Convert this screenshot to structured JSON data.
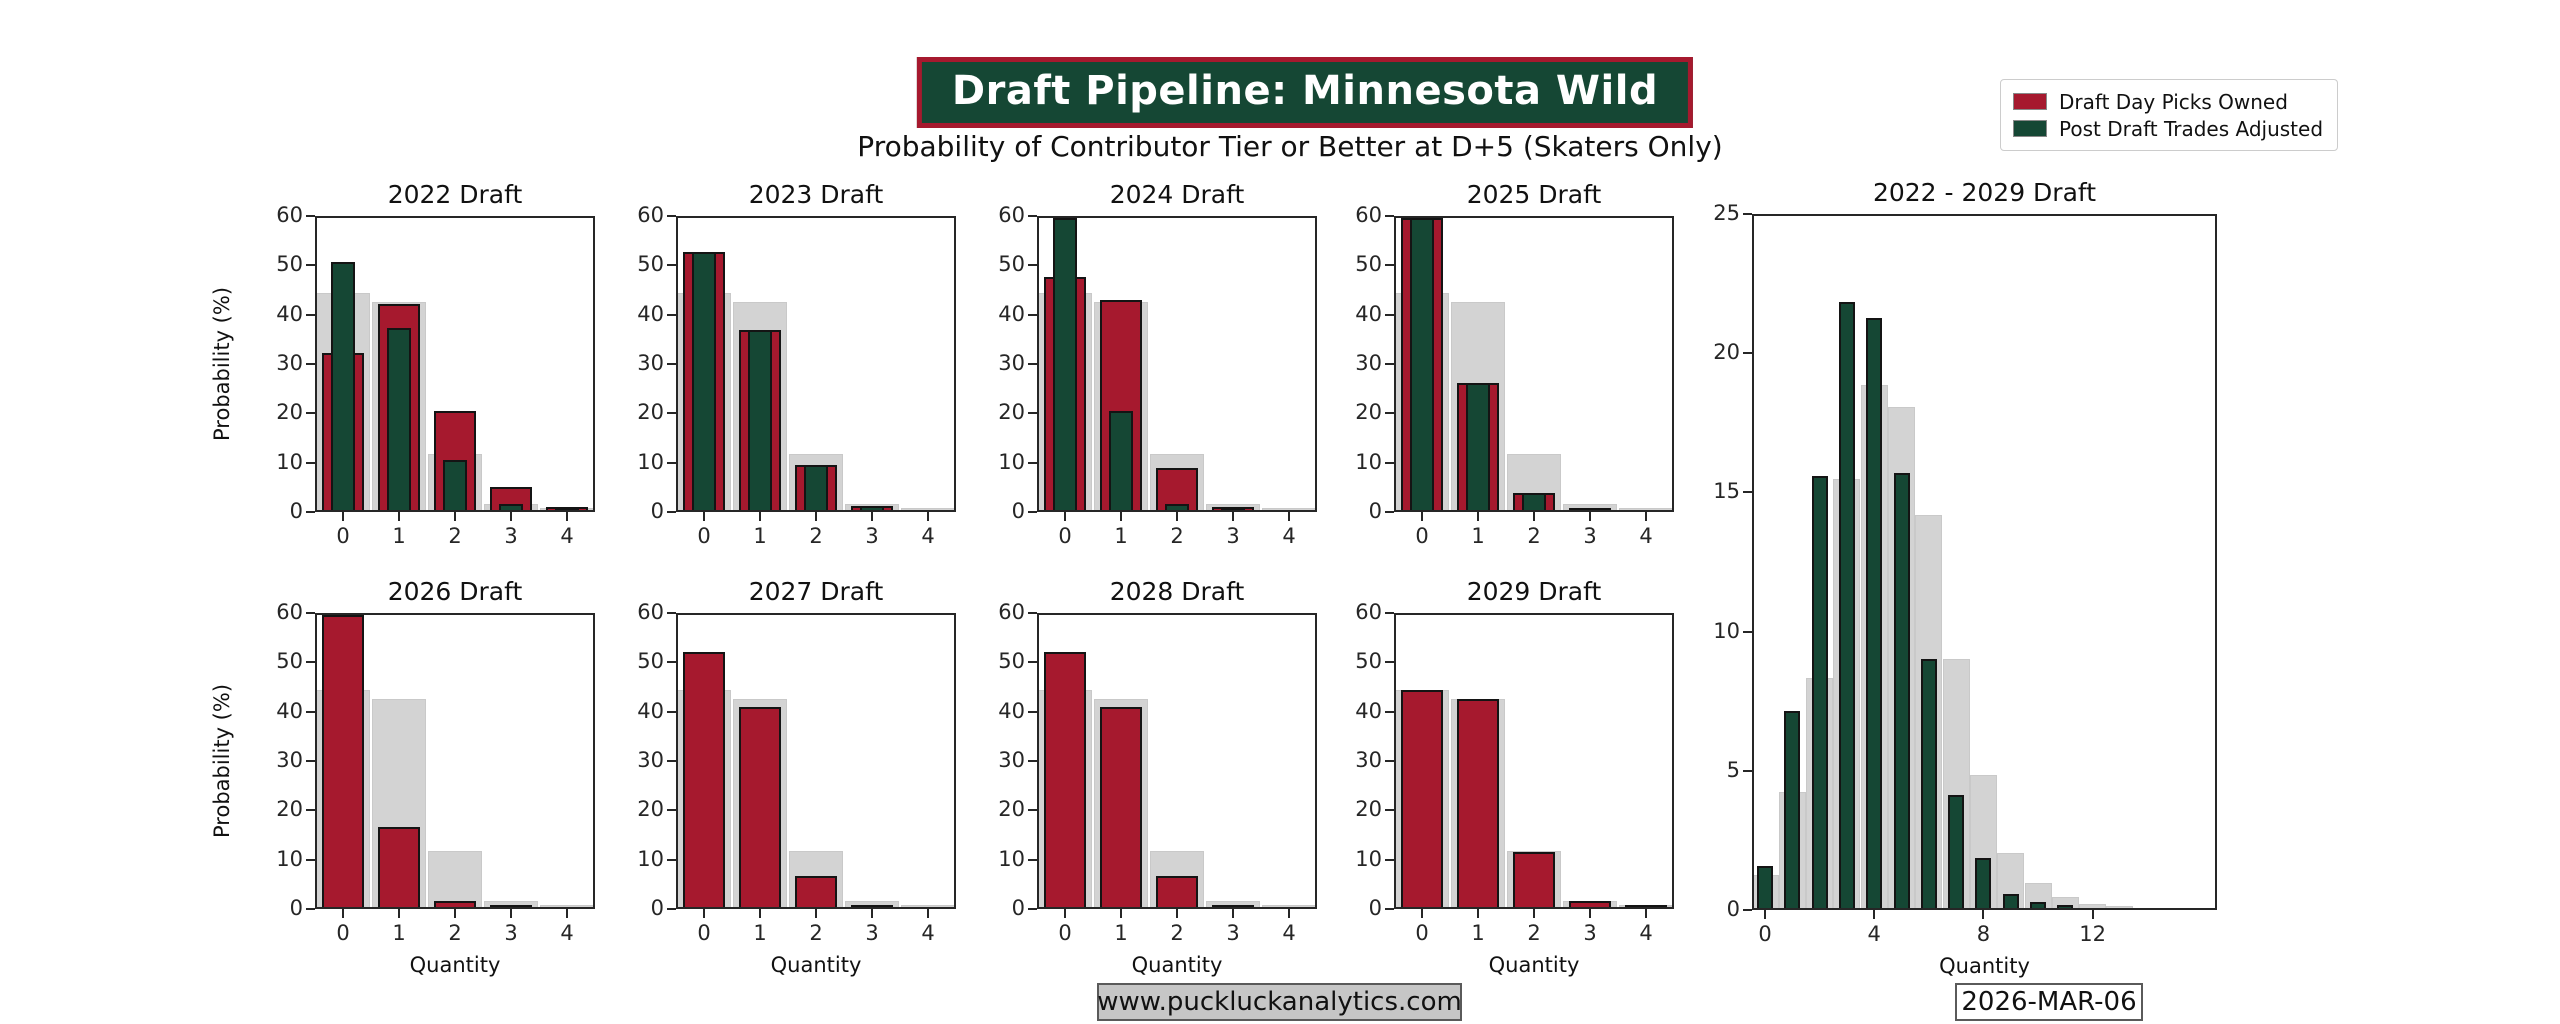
{
  "header": {
    "title": "Draft Pipeline: Minnesota Wild",
    "subtitle": "Probability of Contributor Tier or Better at D+5 (Skaters Only)"
  },
  "legend": {
    "items": [
      {
        "label": "Draft Day Picks Owned",
        "color": "#a6192e"
      },
      {
        "label": "Post Draft Trades Adjusted",
        "color": "#154734"
      }
    ]
  },
  "footer": {
    "website": "www.puckluckanalytics.com",
    "date": "2026-MAR-06"
  },
  "colors": {
    "brand_red": "#a6192e",
    "brand_green": "#154734",
    "baseline_gray": "#d3d3d3",
    "banner_bg": "#154734",
    "banner_border": "#a6192e",
    "axis_text": "#262626"
  },
  "chart_data": [
    {
      "type": "bar",
      "title": "2022 Draft",
      "categories": [
        0,
        1,
        2,
        3,
        4
      ],
      "ylim": [
        0,
        60
      ],
      "yticks": [
        0,
        10,
        20,
        30,
        40,
        50,
        60
      ],
      "xticks": [
        0,
        1,
        2,
        3,
        4
      ],
      "xlabel": "",
      "ylabel": "Probability (%)",
      "series": [
        {
          "name": "Baseline (unlabeled)",
          "color": "#d3d3d3",
          "values": [
            44.5,
            42.7,
            11.5,
            1.3,
            0.05
          ]
        },
        {
          "name": "Draft Day Picks Owned",
          "color": "#a6192e",
          "values": [
            32.3,
            42.3,
            20.3,
            4.7,
            0.6
          ]
        },
        {
          "name": "Post Draft Trades Adjusted",
          "color": "#154734",
          "values": [
            51.0,
            37.5,
            10.3,
            1.2,
            0.2
          ]
        }
      ]
    },
    {
      "type": "bar",
      "title": "2023 Draft",
      "categories": [
        0,
        1,
        2,
        3,
        4
      ],
      "ylim": [
        0,
        60
      ],
      "yticks": [
        0,
        10,
        20,
        30,
        40,
        50,
        60
      ],
      "xticks": [
        0,
        1,
        2,
        3,
        4
      ],
      "xlabel": "",
      "ylabel": "",
      "series": [
        {
          "name": "Baseline (unlabeled)",
          "color": "#d3d3d3",
          "values": [
            44.5,
            42.7,
            11.5,
            1.3,
            0.05
          ]
        },
        {
          "name": "Draft Day Picks Owned",
          "color": "#a6192e",
          "values": [
            53.0,
            37.0,
            9.3,
            0.9,
            0
          ]
        },
        {
          "name": "Post Draft Trades Adjusted",
          "color": "#154734",
          "values": [
            53.0,
            37.0,
            9.3,
            0.9,
            0
          ]
        }
      ]
    },
    {
      "type": "bar",
      "title": "2024 Draft",
      "categories": [
        0,
        1,
        2,
        3,
        4
      ],
      "ylim": [
        0,
        60
      ],
      "yticks": [
        0,
        10,
        20,
        30,
        40,
        50,
        60
      ],
      "xticks": [
        0,
        1,
        2,
        3,
        4
      ],
      "xlabel": "",
      "ylabel": "",
      "series": [
        {
          "name": "Baseline (unlabeled)",
          "color": "#d3d3d3",
          "values": [
            44.5,
            42.7,
            11.5,
            1.3,
            0.05
          ]
        },
        {
          "name": "Draft Day Picks Owned",
          "color": "#a6192e",
          "values": [
            47.8,
            43.2,
            8.6,
            0.6,
            0
          ]
        },
        {
          "name": "Post Draft Trades Adjusted",
          "color": "#154734",
          "values": [
            62.0,
            20.3,
            1.3,
            0.1,
            0
          ]
        }
      ]
    },
    {
      "type": "bar",
      "title": "2025 Draft",
      "categories": [
        0,
        1,
        2,
        3,
        4
      ],
      "ylim": [
        0,
        60
      ],
      "yticks": [
        0,
        10,
        20,
        30,
        40,
        50,
        60
      ],
      "xticks": [
        0,
        1,
        2,
        3,
        4
      ],
      "xlabel": "",
      "ylabel": "",
      "series": [
        {
          "name": "Baseline (unlabeled)",
          "color": "#d3d3d3",
          "values": [
            44.5,
            42.7,
            11.5,
            1.3,
            0.05
          ]
        },
        {
          "name": "Draft Day Picks Owned",
          "color": "#a6192e",
          "values": [
            65.0,
            26.0,
            3.4,
            0.3,
            0
          ]
        },
        {
          "name": "Post Draft Trades Adjusted",
          "color": "#154734",
          "values": [
            65.0,
            26.0,
            3.4,
            0.3,
            0
          ]
        }
      ]
    },
    {
      "type": "bar",
      "title": "2026 Draft",
      "categories": [
        0,
        1,
        2,
        3,
        4
      ],
      "ylim": [
        0,
        60
      ],
      "yticks": [
        0,
        10,
        20,
        30,
        40,
        50,
        60
      ],
      "xticks": [
        0,
        1,
        2,
        3,
        4
      ],
      "xlabel": "Quantity",
      "ylabel": "Probability (%)",
      "series": [
        {
          "name": "Baseline (unlabeled)",
          "color": "#d3d3d3",
          "values": [
            44.5,
            42.7,
            11.5,
            1.3,
            0.05
          ]
        },
        {
          "name": "Draft Day Picks Owned",
          "color": "#a6192e",
          "values": [
            63.0,
            16.5,
            1.3,
            0.1,
            0
          ]
        }
      ]
    },
    {
      "type": "bar",
      "title": "2027 Draft",
      "categories": [
        0,
        1,
        2,
        3,
        4
      ],
      "ylim": [
        0,
        60
      ],
      "yticks": [
        0,
        10,
        20,
        30,
        40,
        50,
        60
      ],
      "xticks": [
        0,
        1,
        2,
        3,
        4
      ],
      "xlabel": "Quantity",
      "ylabel": "",
      "series": [
        {
          "name": "Baseline (unlabeled)",
          "color": "#d3d3d3",
          "values": [
            44.5,
            42.7,
            11.5,
            1.3,
            0.05
          ]
        },
        {
          "name": "Draft Day Picks Owned",
          "color": "#a6192e",
          "values": [
            52.3,
            41.0,
            6.3,
            0.4,
            0
          ]
        }
      ]
    },
    {
      "type": "bar",
      "title": "2028 Draft",
      "categories": [
        0,
        1,
        2,
        3,
        4
      ],
      "ylim": [
        0,
        60
      ],
      "yticks": [
        0,
        10,
        20,
        30,
        40,
        50,
        60
      ],
      "xticks": [
        0,
        1,
        2,
        3,
        4
      ],
      "xlabel": "Quantity",
      "ylabel": "",
      "series": [
        {
          "name": "Baseline (unlabeled)",
          "color": "#d3d3d3",
          "values": [
            44.5,
            42.7,
            11.5,
            1.3,
            0.05
          ]
        },
        {
          "name": "Draft Day Picks Owned",
          "color": "#a6192e",
          "values": [
            52.3,
            41.0,
            6.3,
            0.4,
            0
          ]
        }
      ]
    },
    {
      "type": "bar",
      "title": "2029 Draft",
      "categories": [
        0,
        1,
        2,
        3,
        4
      ],
      "ylim": [
        0,
        60
      ],
      "yticks": [
        0,
        10,
        20,
        30,
        40,
        50,
        60
      ],
      "xticks": [
        0,
        1,
        2,
        3,
        4
      ],
      "xlabel": "Quantity",
      "ylabel": "",
      "series": [
        {
          "name": "Baseline (unlabeled)",
          "color": "#d3d3d3",
          "values": [
            44.5,
            42.7,
            11.5,
            1.3,
            0.05
          ]
        },
        {
          "name": "Draft Day Picks Owned",
          "color": "#a6192e",
          "values": [
            44.5,
            42.7,
            11.4,
            1.2,
            0.05
          ]
        }
      ]
    },
    {
      "type": "bar",
      "title": "2022 - 2029 Draft",
      "categories": [
        0,
        1,
        2,
        3,
        4,
        5,
        6,
        7,
        8,
        9,
        10,
        11,
        12,
        13
      ],
      "ylim": [
        0,
        25
      ],
      "yticks": [
        0,
        5,
        10,
        15,
        20,
        25
      ],
      "xticks": [
        0,
        4,
        8,
        12
      ],
      "xlabel": "Quantity",
      "ylabel": "",
      "series": [
        {
          "name": "Baseline (unlabeled)",
          "color": "#d3d3d3",
          "values": [
            1.2,
            4.2,
            8.3,
            15.5,
            18.9,
            18.1,
            14.2,
            9.0,
            4.8,
            2.0,
            0.9,
            0.4,
            0.15,
            0.05
          ]
        },
        {
          "name": "Post Draft Trades Adjusted",
          "color": "#154734",
          "values": [
            1.5,
            7.1,
            15.6,
            21.9,
            21.3,
            15.7,
            9.0,
            4.1,
            1.8,
            0.5,
            0.2,
            0.1,
            0,
            0
          ]
        }
      ]
    }
  ]
}
